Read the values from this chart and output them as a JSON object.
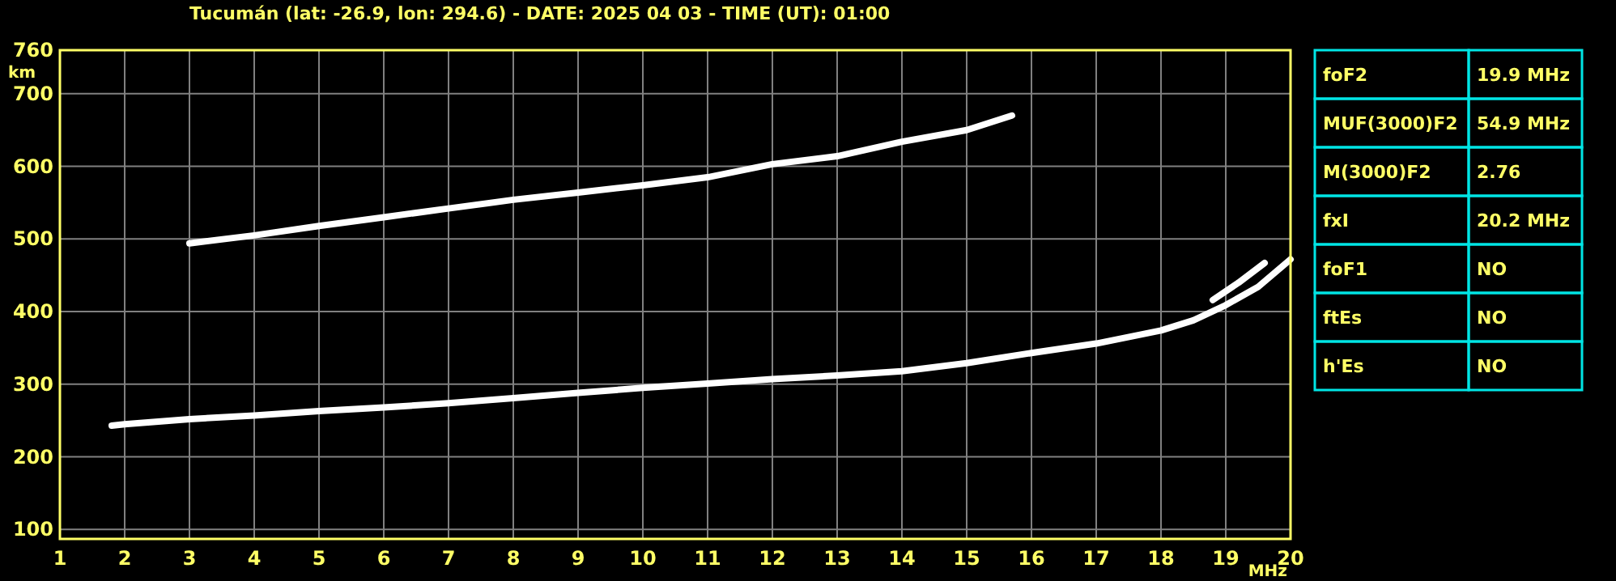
{
  "chart_data": [
    {
      "type": "line",
      "title": "Tucumán (lat: -26.9, lon: 294.6) - DATE: 2025 04 03 - TIME (UT): 01:00",
      "xlabel": "MHz",
      "ylabel": "km",
      "xlim": [
        1,
        20
      ],
      "ylim": [
        87,
        760
      ],
      "xticks": [
        1,
        2,
        3,
        4,
        5,
        6,
        7,
        8,
        9,
        10,
        11,
        12,
        13,
        14,
        15,
        16,
        17,
        18,
        19,
        20
      ],
      "yticks": [
        100,
        200,
        300,
        400,
        500,
        600,
        700,
        760
      ],
      "grid": true,
      "marker": "none",
      "line_style": "solid",
      "series": [
        {
          "color": "#ffffff",
          "x": [
            1.8,
            2,
            3,
            4,
            5,
            6,
            7,
            8,
            9,
            10,
            11,
            12,
            13,
            14,
            15,
            16,
            17,
            18,
            18.5,
            19,
            19.5,
            20
          ],
          "values": [
            243,
            245,
            252,
            257,
            263,
            268,
            274,
            281,
            288,
            295,
            301,
            307,
            312,
            318,
            329,
            343,
            356,
            374,
            388,
            409,
            434,
            472
          ]
        },
        {
          "color": "#ffffff",
          "x": [
            18.8,
            19.2,
            19.6
          ],
          "values": [
            416,
            440,
            467
          ]
        },
        {
          "color": "#ffffff",
          "x": [
            3,
            4,
            5,
            6,
            7,
            8,
            9,
            10,
            11,
            12,
            13,
            14,
            15,
            15.7
          ],
          "values": [
            494,
            505,
            518,
            530,
            542,
            554,
            564,
            574,
            585,
            603,
            614,
            634,
            650,
            670
          ]
        }
      ]
    },
    {
      "type": "other",
      "annotations": [
        "foF2",
        "19.9 MHz",
        "MUF(3000)F2",
        "54.9 MHz",
        "M(3000)F2",
        "2.76",
        "fxI",
        "20.2 MHz",
        "foF1",
        "NO",
        "ftEs",
        "NO",
        "h'Es",
        "NO"
      ]
    }
  ]
}
